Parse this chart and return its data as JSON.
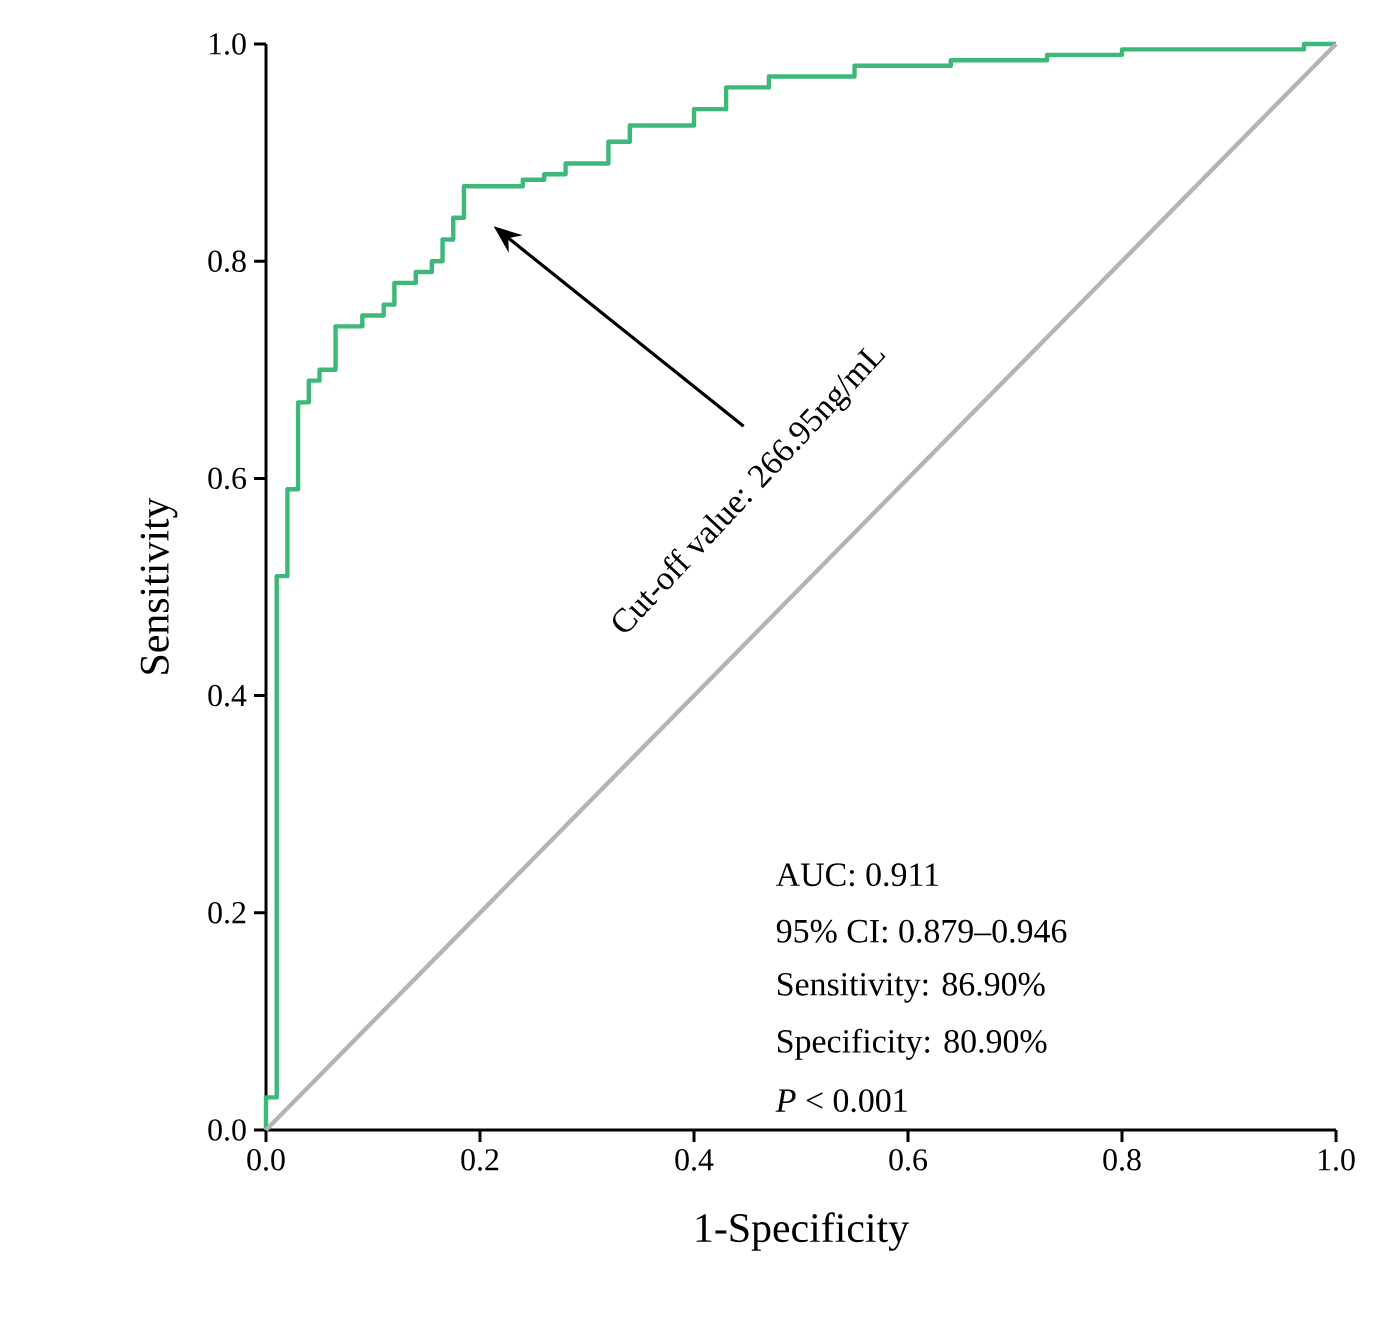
{
  "chart_data": {
    "type": "line",
    "xlabel": "1-Specificity",
    "ylabel": "Sensitivity",
    "xlim": [
      0,
      1
    ],
    "ylim": [
      0,
      1
    ],
    "xticks": [
      {
        "value": 0,
        "label": "0.0"
      },
      {
        "value": 0.2,
        "label": "0.2"
      },
      {
        "value": 0.4,
        "label": "0.4"
      },
      {
        "value": 0.6,
        "label": "0.6"
      },
      {
        "value": 0.8,
        "label": "0.8"
      },
      {
        "value": 1,
        "label": "1.0"
      }
    ],
    "yticks": [
      {
        "value": 0,
        "label": "0.0"
      },
      {
        "value": 0.2,
        "label": "0.2"
      },
      {
        "value": 0.4,
        "label": "0.4"
      },
      {
        "value": 0.6,
        "label": "0.6"
      },
      {
        "value": 0.8,
        "label": "0.8"
      },
      {
        "value": 1,
        "label": "1.0"
      }
    ],
    "series": [
      {
        "color": "#3cb878",
        "x": [
          0,
          0,
          0.01,
          0.01,
          0.02,
          0.02,
          0.03,
          0.03,
          0.04,
          0.04,
          0.05,
          0.05,
          0.065,
          0.065,
          0.09,
          0.09,
          0.11,
          0.11,
          0.12,
          0.12,
          0.14,
          0.14,
          0.155,
          0.155,
          0.165,
          0.165,
          0.175,
          0.175,
          0.185,
          0.185,
          0.24,
          0.24,
          0.26,
          0.26,
          0.28,
          0.28,
          0.32,
          0.32,
          0.34,
          0.34,
          0.4,
          0.4,
          0.43,
          0.43,
          0.47,
          0.47,
          0.55,
          0.55,
          0.64,
          0.64,
          0.73,
          0.73,
          0.8,
          0.8,
          0.97,
          0.97,
          1
        ],
        "values": [
          0,
          0.03,
          0.03,
          0.51,
          0.51,
          0.59,
          0.59,
          0.67,
          0.67,
          0.69,
          0.69,
          0.7,
          0.7,
          0.74,
          0.74,
          0.75,
          0.75,
          0.76,
          0.76,
          0.78,
          0.78,
          0.79,
          0.79,
          0.8,
          0.8,
          0.82,
          0.82,
          0.84,
          0.84,
          0.869,
          0.869,
          0.875,
          0.875,
          0.88,
          0.88,
          0.89,
          0.89,
          0.91,
          0.91,
          0.925,
          0.925,
          0.94,
          0.94,
          0.96,
          0.96,
          0.97,
          0.97,
          0.98,
          0.98,
          0.985,
          0.985,
          0.99,
          0.99,
          0.995,
          0.995,
          1,
          1
        ]
      },
      {
        "color": "#b4b4b4",
        "x": [
          0,
          1
        ],
        "values": [
          0,
          1
        ]
      }
    ],
    "annotations": [
      "Cut-off value: 266.95ng/mL",
      "AUC: 0.911",
      "95% CI: 0.879–0.946",
      "Sensitivity: 86.90%",
      "Specificity: 80.90%",
      "*P* < 0.001"
    ]
  }
}
